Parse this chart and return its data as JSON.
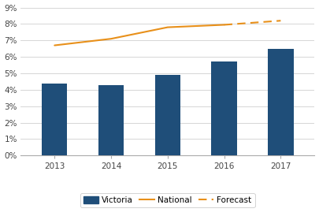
{
  "years": [
    2013,
    2014,
    2015,
    2016,
    2017
  ],
  "bar_values": [
    0.044,
    0.043,
    0.049,
    0.057,
    0.065
  ],
  "national_solid_years": [
    2013,
    2014,
    2015,
    2016
  ],
  "national_solid_values": [
    0.067,
    0.071,
    0.078,
    0.0795
  ],
  "forecast_years": [
    2016,
    2017
  ],
  "forecast_values": [
    0.0795,
    0.082
  ],
  "bar_color": "#1F4E79",
  "national_color": "#E8901A",
  "forecast_color": "#E8901A",
  "ylim": [
    0,
    0.09
  ],
  "yticks": [
    0,
    0.01,
    0.02,
    0.03,
    0.04,
    0.05,
    0.06,
    0.07,
    0.08,
    0.09
  ],
  "ytick_labels": [
    "0%",
    "1%",
    "2%",
    "3%",
    "4%",
    "5%",
    "6%",
    "7%",
    "8%",
    "9%"
  ],
  "xlim": [
    2012.4,
    2017.6
  ],
  "background_color": "#ffffff",
  "grid_color": "#d0d0d0",
  "bar_width": 0.45,
  "legend_labels": [
    "Victoria",
    "National",
    "Forecast"
  ],
  "tick_fontsize": 7.5,
  "legend_fontsize": 7.5
}
